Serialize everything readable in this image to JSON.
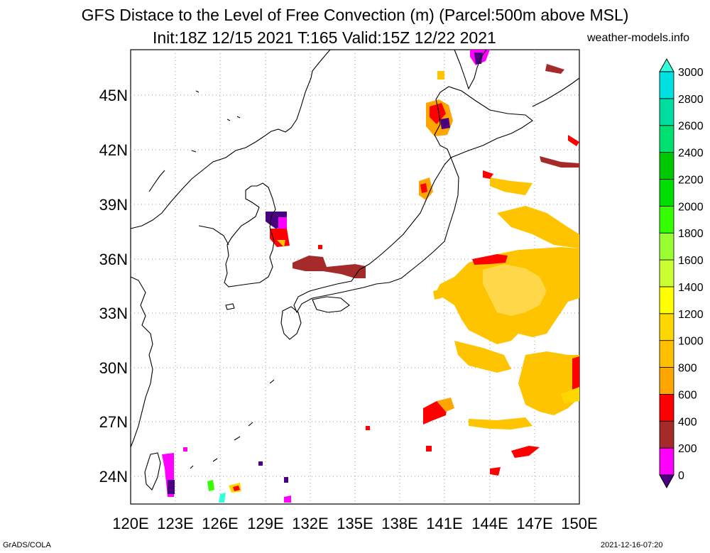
{
  "header": {
    "title_line1": "GFS Distace to the Level of Free Convection (m) (Parcel:500m above MSL)",
    "title_line2": "Init:18Z 12/15 2021 T:165 Valid:15Z 12/22 2021",
    "site": "weather-models.info"
  },
  "footer": {
    "software": "GrADS/COLA",
    "timestamp": "2021-12-16-07:20"
  },
  "map": {
    "lat_labels": [
      "45N",
      "42N",
      "39N",
      "36N",
      "33N",
      "30N",
      "27N",
      "24N"
    ],
    "lon_labels": [
      "120E",
      "123E",
      "126E",
      "129E",
      "132E",
      "135E",
      "138E",
      "141E",
      "144E",
      "147E",
      "150E"
    ]
  },
  "colorbar": {
    "levels": [
      "0",
      "200",
      "400",
      "600",
      "800",
      "1000",
      "1200",
      "1400",
      "1600",
      "1800",
      "2000",
      "2200",
      "2400",
      "2600",
      "2800",
      "3000"
    ],
    "colors": [
      "#4b0082",
      "#ff00ff",
      "#a52a2a",
      "#ff0000",
      "#ffa500",
      "#ffbf00",
      "#ffd700",
      "#ffff00",
      "#ccff33",
      "#99ff33",
      "#33ff00",
      "#00dd00",
      "#00c800",
      "#00e070",
      "#00dda0",
      "#00e0e0",
      "#33ffdd"
    ]
  }
}
